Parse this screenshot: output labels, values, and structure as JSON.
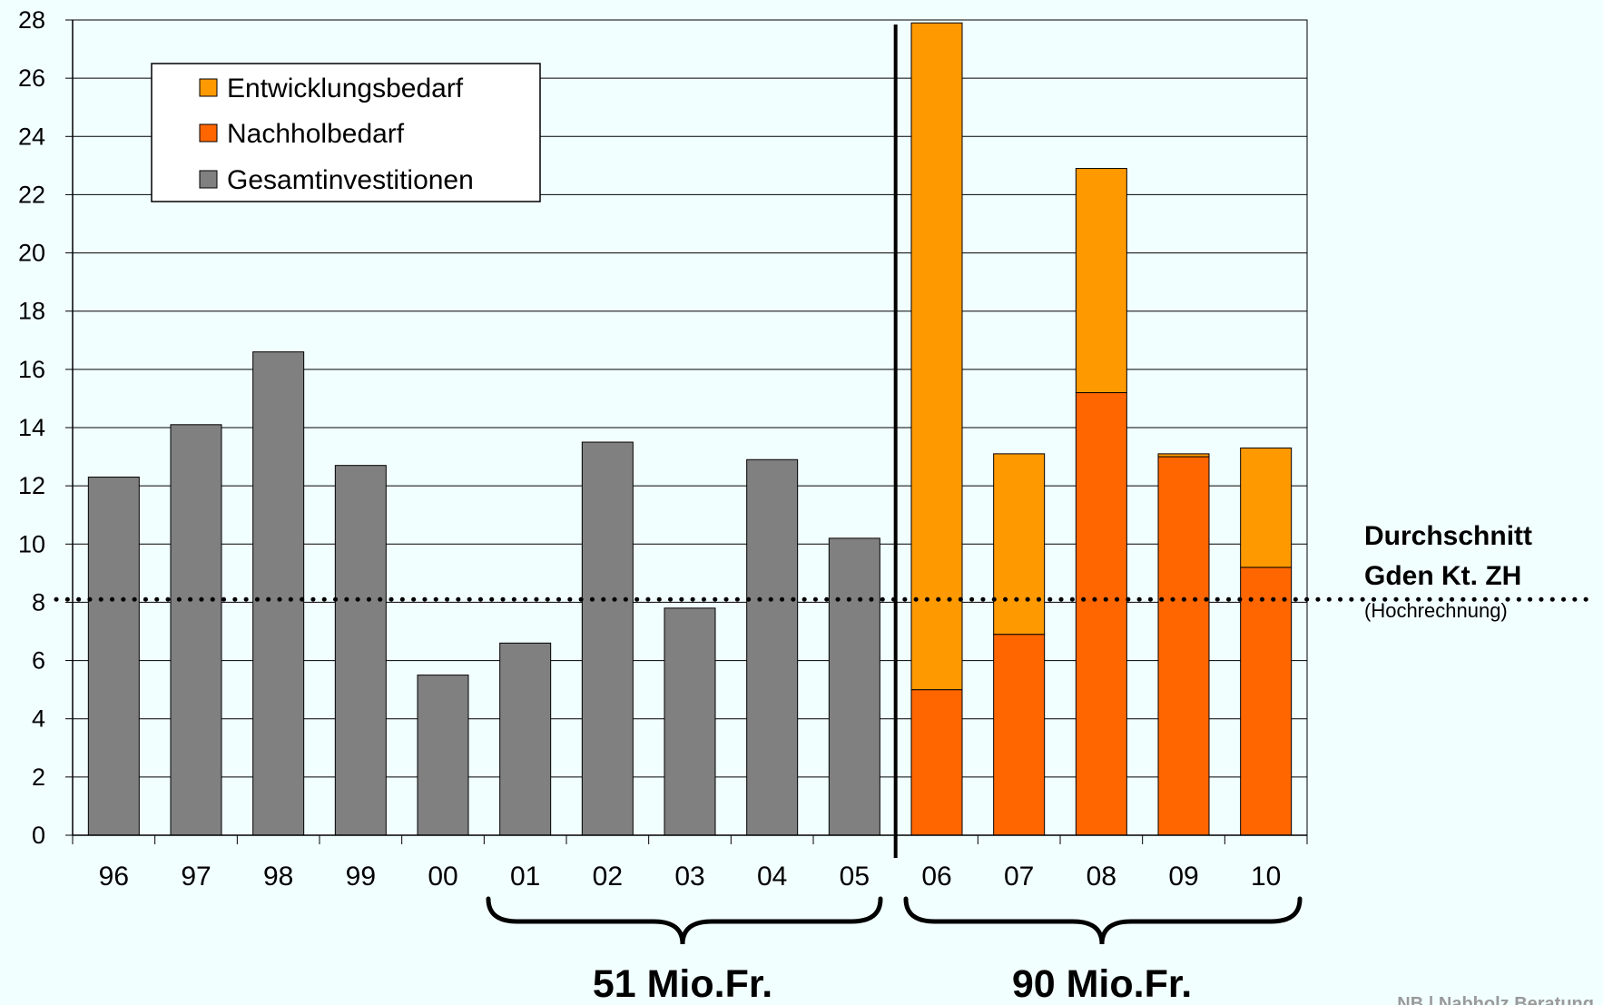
{
  "chart_data": {
    "type": "bar",
    "stacked": true,
    "categories": [
      "96",
      "97",
      "98",
      "99",
      "00",
      "01",
      "02",
      "03",
      "04",
      "05",
      "06",
      "07",
      "08",
      "09",
      "10"
    ],
    "series": [
      {
        "name": "Gesamtinvestitionen",
        "color": "#808080",
        "values": [
          12.3,
          14.1,
          16.6,
          12.7,
          5.5,
          6.6,
          13.5,
          7.8,
          12.9,
          10.2,
          null,
          null,
          null,
          null,
          null
        ]
      },
      {
        "name": "Nachholbedarf",
        "color": "#ff6600",
        "values": [
          null,
          null,
          null,
          null,
          null,
          null,
          null,
          null,
          null,
          null,
          5.0,
          6.9,
          15.2,
          13.0,
          9.2
        ]
      },
      {
        "name": "Entwicklungsbedarf",
        "color": "#ff9900",
        "values": [
          null,
          null,
          null,
          null,
          null,
          null,
          null,
          null,
          null,
          null,
          22.9,
          6.2,
          7.7,
          0.1,
          4.1
        ]
      }
    ],
    "ylim": [
      0,
      28
    ],
    "yticks": [
      "0",
      "2",
      "4",
      "6",
      "8",
      "10",
      "12",
      "14",
      "16",
      "18",
      "20",
      "22",
      "24",
      "26",
      "28"
    ],
    "grid": true,
    "legend": {
      "position": "top-left",
      "entries": [
        "Entwicklungsbedarf",
        "Nachholbedarf",
        "Gesamtinvestitionen"
      ]
    },
    "reference_line": {
      "value": 8.1,
      "style": "dotted",
      "label_line1": "Durchschnitt",
      "label_line2": "Gden Kt. ZH",
      "label_sub": "(Hochrechnung)"
    },
    "divider_after_category": "05",
    "brace_groups": [
      {
        "from": "01",
        "to": "05",
        "label": "51 Mio.Fr."
      },
      {
        "from": "06",
        "to": "10",
        "label": "90 Mio.Fr."
      }
    ]
  },
  "footer": {
    "text": "NB | Nabholz Beratung"
  },
  "colors": {
    "background": "#f2ffff",
    "gridline": "#000000",
    "bar_outline": "#000000"
  }
}
